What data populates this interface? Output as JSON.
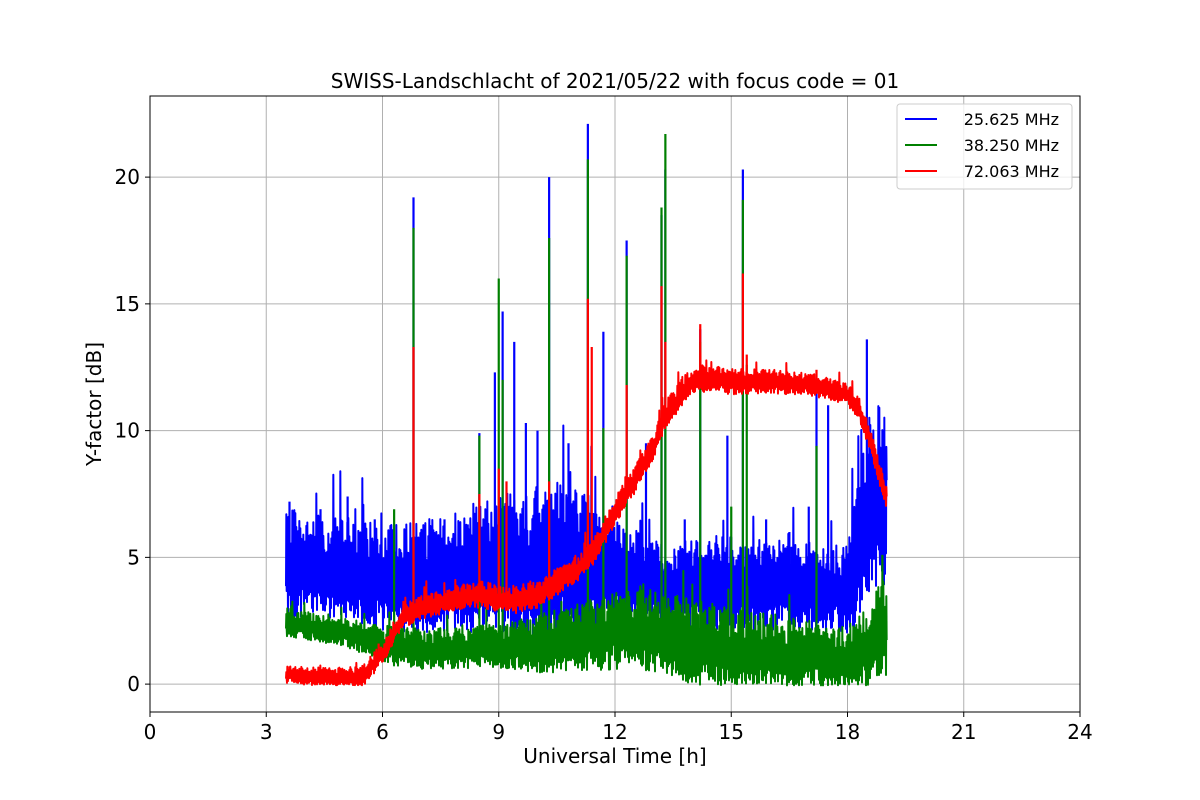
{
  "chart_data": {
    "type": "line",
    "title": "SWISS-Landschlacht of 2021/05/22 with focus code = 01",
    "xlabel": "Universal Time [h]",
    "ylabel": "Y-factor [dB]",
    "xlim": [
      0,
      24
    ],
    "ylim": [
      -1.1,
      23.2
    ],
    "xticks": [
      0,
      3,
      6,
      9,
      12,
      15,
      18,
      21,
      24
    ],
    "xtick_labels": [
      "0",
      "3",
      "6",
      "9",
      "12",
      "15",
      "18",
      "21",
      "24"
    ],
    "yticks": [
      0,
      5,
      10,
      15,
      20
    ],
    "ytick_labels": [
      "0",
      "5",
      "10",
      "15",
      "20"
    ],
    "grid": true,
    "legend_position": "top-right",
    "series": [
      {
        "name": "25.625 MHz",
        "color": "#0000ff",
        "x_range": [
          3.5,
          19.0
        ],
        "baseline": [
          [
            3.5,
            4.6
          ],
          [
            5.0,
            4.4
          ],
          [
            6.0,
            4.0
          ],
          [
            7.0,
            4.0
          ],
          [
            8.0,
            4.2
          ],
          [
            9.0,
            4.4
          ],
          [
            10.0,
            4.5
          ],
          [
            11.0,
            4.6
          ],
          [
            12.0,
            4.2
          ],
          [
            13.0,
            3.9
          ],
          [
            14.0,
            3.8
          ],
          [
            15.0,
            3.8
          ],
          [
            16.0,
            3.8
          ],
          [
            17.0,
            3.7
          ],
          [
            18.0,
            3.6
          ],
          [
            18.3,
            5.0
          ],
          [
            18.6,
            7.0
          ],
          [
            19.0,
            7.0
          ]
        ],
        "spread": [
          [
            3.5,
            2.0
          ],
          [
            5.0,
            1.9
          ],
          [
            6.0,
            1.9
          ],
          [
            8.0,
            2.2
          ],
          [
            9.5,
            2.7
          ],
          [
            11.0,
            2.8
          ],
          [
            12.0,
            2.0
          ],
          [
            13.0,
            1.5
          ],
          [
            15.0,
            1.7
          ],
          [
            17.0,
            1.6
          ],
          [
            18.0,
            1.6
          ],
          [
            18.3,
            3.0
          ],
          [
            19.0,
            3.5
          ]
        ],
        "peaks": [
          [
            3.6,
            7.2
          ],
          [
            4.4,
            6.9
          ],
          [
            5.1,
            7.4
          ],
          [
            5.8,
            6.5
          ],
          [
            6.8,
            19.2
          ],
          [
            7.6,
            6.5
          ],
          [
            8.2,
            6.3
          ],
          [
            8.5,
            9.9
          ],
          [
            8.9,
            12.3
          ],
          [
            9.1,
            14.7
          ],
          [
            9.4,
            13.5
          ],
          [
            9.7,
            10.3
          ],
          [
            10.0,
            10.0
          ],
          [
            10.3,
            20.0
          ],
          [
            10.8,
            9.5
          ],
          [
            11.3,
            22.1
          ],
          [
            11.7,
            13.9
          ],
          [
            12.3,
            17.5
          ],
          [
            12.8,
            9.5
          ],
          [
            13.2,
            18.5
          ],
          [
            13.3,
            20.3
          ],
          [
            13.8,
            6.5
          ],
          [
            14.2,
            14.0
          ],
          [
            14.9,
            9.8
          ],
          [
            15.3,
            20.3
          ],
          [
            15.9,
            6.5
          ],
          [
            16.5,
            6.0
          ],
          [
            17.0,
            7.0
          ],
          [
            17.2,
            11.7
          ],
          [
            17.5,
            11.0
          ],
          [
            18.5,
            13.6
          ]
        ]
      },
      {
        "name": "38.250 MHz",
        "color": "#008000",
        "x_range": [
          3.5,
          19.0
        ],
        "baseline": [
          [
            3.5,
            2.4
          ],
          [
            5.0,
            2.0
          ],
          [
            6.0,
            1.5
          ],
          [
            7.0,
            1.3
          ],
          [
            8.0,
            1.4
          ],
          [
            9.0,
            1.4
          ],
          [
            10.0,
            1.5
          ],
          [
            11.0,
            1.7
          ],
          [
            12.0,
            2.0
          ],
          [
            13.0,
            2.0
          ],
          [
            14.0,
            1.5
          ],
          [
            15.0,
            1.3
          ],
          [
            16.0,
            1.1
          ],
          [
            17.0,
            1.1
          ],
          [
            18.0,
            0.8
          ],
          [
            18.6,
            1.5
          ],
          [
            19.0,
            2.2
          ]
        ],
        "spread": [
          [
            3.5,
            0.5
          ],
          [
            5.0,
            0.5
          ],
          [
            6.0,
            0.7
          ],
          [
            9.0,
            0.8
          ],
          [
            11.0,
            1.3
          ],
          [
            13.0,
            1.5
          ],
          [
            15.0,
            1.5
          ],
          [
            17.0,
            1.2
          ],
          [
            18.0,
            1.0
          ],
          [
            19.0,
            2.0
          ]
        ],
        "peaks": [
          [
            6.3,
            6.9
          ],
          [
            6.8,
            18.0
          ],
          [
            8.5,
            9.8
          ],
          [
            9.0,
            16.0
          ],
          [
            9.1,
            12.0
          ],
          [
            10.3,
            17.6
          ],
          [
            11.3,
            20.7
          ],
          [
            11.7,
            10.1
          ],
          [
            12.3,
            16.9
          ],
          [
            13.2,
            18.8
          ],
          [
            13.3,
            21.7
          ],
          [
            14.2,
            13.5
          ],
          [
            15.0,
            7.0
          ],
          [
            15.3,
            19.1
          ],
          [
            15.4,
            12.6
          ],
          [
            17.2,
            9.4
          ],
          [
            18.9,
            5.1
          ]
        ]
      },
      {
        "name": "72.063 MHz",
        "color": "#ff0000",
        "x_range": [
          3.5,
          19.0
        ],
        "baseline": [
          [
            3.5,
            0.35
          ],
          [
            4.0,
            0.3
          ],
          [
            5.0,
            0.2
          ],
          [
            5.5,
            0.3
          ],
          [
            6.0,
            1.2
          ],
          [
            6.5,
            2.6
          ],
          [
            7.0,
            3.0
          ],
          [
            8.0,
            3.4
          ],
          [
            8.5,
            3.5
          ],
          [
            9.0,
            3.3
          ],
          [
            9.5,
            3.3
          ],
          [
            10.0,
            3.5
          ],
          [
            10.5,
            4.0
          ],
          [
            11.0,
            4.5
          ],
          [
            11.5,
            5.3
          ],
          [
            12.0,
            6.8
          ],
          [
            12.5,
            8.0
          ],
          [
            13.0,
            9.4
          ],
          [
            13.3,
            10.6
          ],
          [
            13.7,
            11.4
          ],
          [
            14.0,
            12.0
          ],
          [
            14.5,
            12.0
          ],
          [
            15.0,
            11.9
          ],
          [
            16.0,
            11.9
          ],
          [
            17.0,
            11.8
          ],
          [
            17.5,
            11.6
          ],
          [
            18.0,
            11.4
          ],
          [
            18.3,
            10.8
          ],
          [
            18.6,
            9.5
          ],
          [
            19.0,
            7.3
          ]
        ],
        "spread": [
          [
            3.5,
            0.3
          ],
          [
            6.0,
            0.4
          ],
          [
            9.0,
            0.5
          ],
          [
            12.0,
            0.5
          ],
          [
            14.0,
            0.5
          ],
          [
            17.0,
            0.4
          ],
          [
            19.0,
            0.4
          ]
        ],
        "peaks": [
          [
            3.6,
            0.7
          ],
          [
            5.9,
            1.6
          ],
          [
            6.8,
            13.3
          ],
          [
            8.5,
            7.5
          ],
          [
            9.0,
            8.5
          ],
          [
            9.2,
            8.0
          ],
          [
            10.3,
            8.0
          ],
          [
            11.3,
            15.2
          ],
          [
            11.4,
            13.3
          ],
          [
            12.3,
            11.8
          ],
          [
            13.2,
            15.7
          ],
          [
            13.3,
            13.5
          ],
          [
            14.2,
            14.2
          ],
          [
            15.3,
            16.2
          ],
          [
            15.4,
            13.0
          ],
          [
            17.2,
            12.4
          ]
        ]
      }
    ]
  }
}
